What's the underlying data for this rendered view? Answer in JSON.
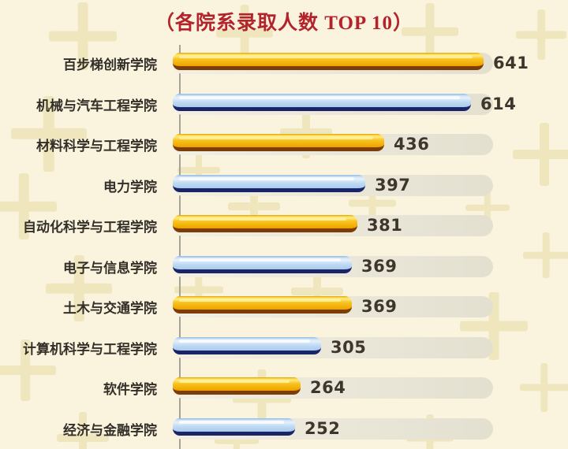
{
  "title": "（各院系录取人数 TOP 10）",
  "colors": {
    "background": "#FAF4DF",
    "title-red": "#B3232C",
    "label-text": "#332F28",
    "value-text": "#3E362C",
    "track": "#E6E2D2",
    "gold-dark": "#7C3D08",
    "blue-dark": "#1A2568",
    "plus-decor": "#EFE6BD",
    "axis-line": "#A3A39B",
    "gold-main": "#F6BE1C",
    "blue-main": "#BCD7F2"
  },
  "chart_data": {
    "type": "bar",
    "orientation": "horizontal",
    "title": "（各院系录取人数 TOP 10）",
    "categories": [
      "百步梯创新学院",
      "机械与汽车工程学院",
      "材料科学与工程学院",
      "电力学院",
      "自动化科学与工程学院",
      "电子与信息学院",
      "土木与交通学院",
      "计算机科学与工程学院",
      "软件学院",
      "经济与金融学院"
    ],
    "values": [
      641,
      614,
      436,
      397,
      381,
      369,
      369,
      305,
      264,
      252
    ],
    "bar_colors": [
      "gold",
      "blue",
      "gold",
      "blue",
      "gold",
      "blue",
      "gold",
      "blue",
      "gold",
      "blue"
    ],
    "value_labels_shown": true,
    "xlim": [
      0,
      660
    ],
    "legend": "none",
    "grid": "none",
    "sort": "descending"
  }
}
